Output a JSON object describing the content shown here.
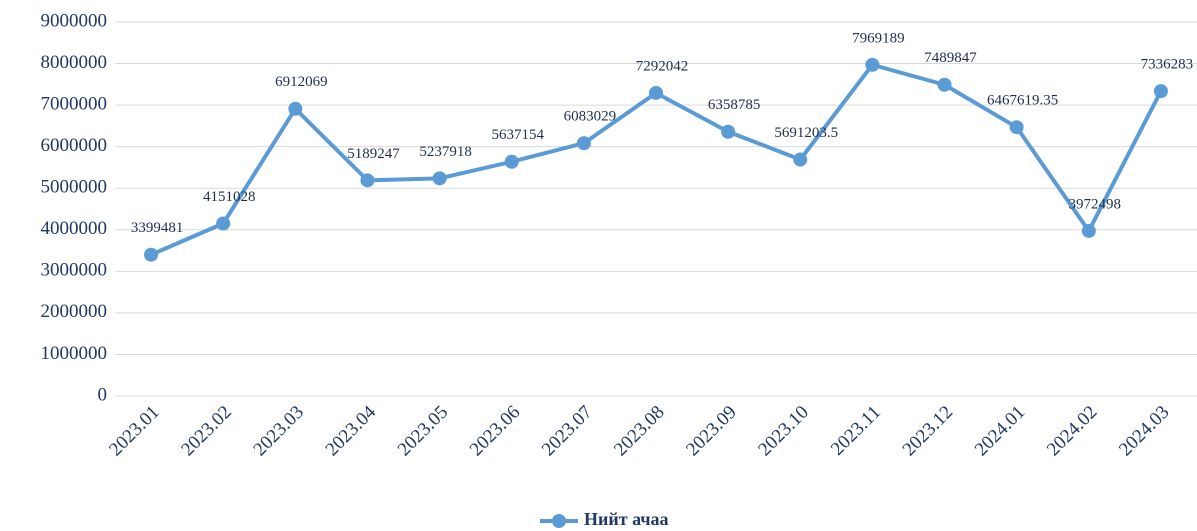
{
  "chart_data": {
    "type": "line",
    "categories": [
      "2023.01",
      "2023.02",
      "2023.03",
      "2023.04",
      "2023.05",
      "2023.06",
      "2023.07",
      "2023.08",
      "2023.09",
      "2023.10",
      "2023.11",
      "2023.12",
      "2024.01",
      "2024.02",
      "2024.03"
    ],
    "series": [
      {
        "name": "Нийт ачаа",
        "color": "#5b9bd5",
        "values": [
          3399481,
          4151028,
          6912069,
          5189247,
          5237918,
          5637154,
          6083029,
          7292042,
          6358785,
          5691203.5,
          7969189,
          7489847,
          6467619.35,
          3972498,
          7336283
        ]
      }
    ],
    "ylim": [
      0,
      9000000
    ],
    "yticks": [
      0,
      1000000,
      2000000,
      3000000,
      4000000,
      5000000,
      6000000,
      7000000,
      8000000,
      9000000
    ],
    "grid": true,
    "legend": "bottom"
  }
}
